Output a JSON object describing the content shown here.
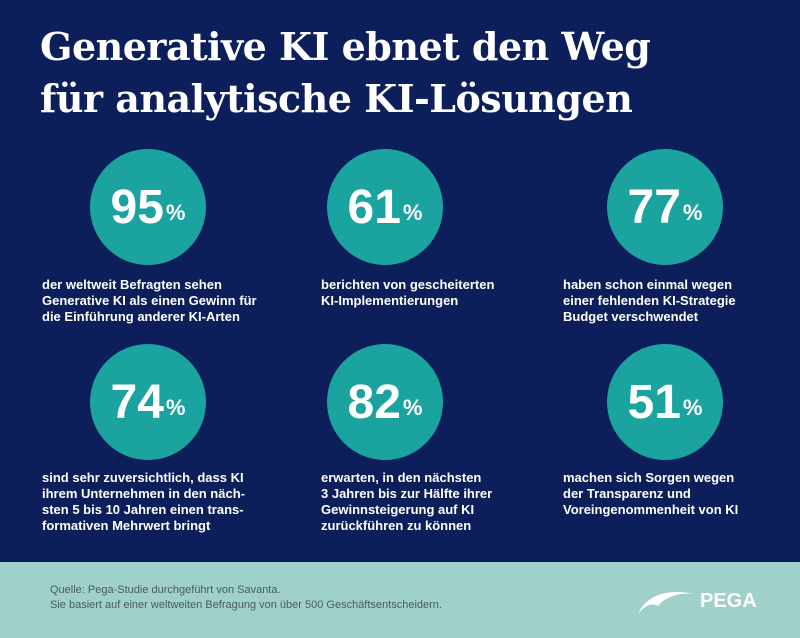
{
  "header": {
    "title": [
      "Generative KI ebnet den Weg",
      "für analytische KI-Lösungen"
    ]
  },
  "stats": [
    {
      "number": "95",
      "unit": "%",
      "text": [
        "der weltweit Befragten sehen",
        "Generative KI als einen Gewinn für",
        "die Einführung anderer KI-Arten"
      ]
    },
    {
      "number": "61",
      "unit": "%",
      "text": [
        "berichten von gescheiterten",
        "KI-Implementierungen"
      ]
    },
    {
      "number": "77",
      "unit": "%",
      "text": [
        "haben schon einmal wegen",
        "einer fehlenden KI-Strategie",
        "Budget verschwendet"
      ]
    },
    {
      "number": "74",
      "unit": "%",
      "text": [
        "sind sehr zuversichtlich, dass KI",
        "ihrem Unternehmen in den näch-",
        "sten 5 bis 10 Jahren einen trans-",
        "formativen Mehrwert bringt"
      ]
    },
    {
      "number": "82",
      "unit": "%",
      "text": [
        "erwarten, in den nächsten",
        "3 Jahren bis zur Hälfte ihrer",
        "Gewinnsteigerung auf KI",
        "zurückführen zu können"
      ]
    },
    {
      "number": "51",
      "unit": "%",
      "text": [
        "machen sich Sorgen wegen",
        "der Transparenz und",
        "Voreingenommenheit von KI"
      ]
    }
  ],
  "footer": {
    "source": [
      "Quelle: Pega-Studie durchgeführt von Savanta.",
      "Sie basiert auf einer weltweiten Befragung von über 500 Geschäftsentscheidern."
    ],
    "logo": "PEGA"
  }
}
